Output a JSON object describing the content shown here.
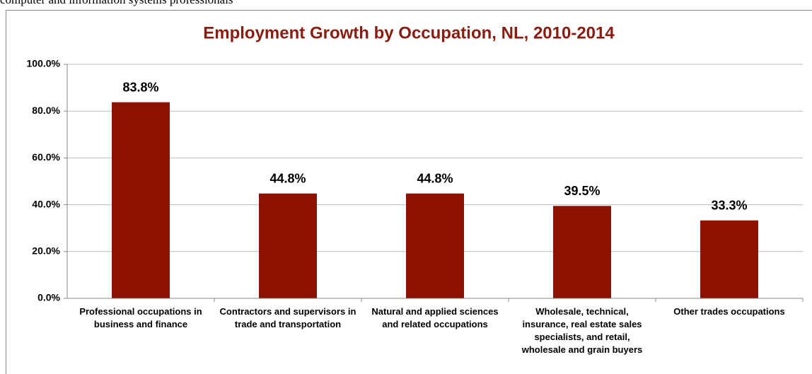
{
  "page_text": "computer and information systems professionals",
  "chart_data": {
    "type": "bar",
    "title": "Employment Growth by Occupation, NL, 2010-2014",
    "categories": [
      "Professional occupations in business and finance",
      "Contractors and supervisors in trade and transportation",
      "Natural and applied sciences and related occupations",
      "Wholesale, technical, insurance, real estate sales specialists, and retail, wholesale and grain buyers",
      "Other trades occupations"
    ],
    "values": [
      83.8,
      44.8,
      44.8,
      39.5,
      33.3
    ],
    "value_labels": [
      "83.8%",
      "44.8%",
      "44.8%",
      "39.5%",
      "33.3%"
    ],
    "color": "#8e1100",
    "ylim": [
      0,
      100
    ],
    "yticks": [
      {
        "value": 0,
        "label": "0.0%"
      },
      {
        "value": 20,
        "label": "20.0%"
      },
      {
        "value": 40,
        "label": "40.0%"
      },
      {
        "value": 60,
        "label": "60.0%"
      },
      {
        "value": 80,
        "label": "80.0%"
      },
      {
        "value": 100,
        "label": "100.0%"
      }
    ],
    "grid": true
  }
}
